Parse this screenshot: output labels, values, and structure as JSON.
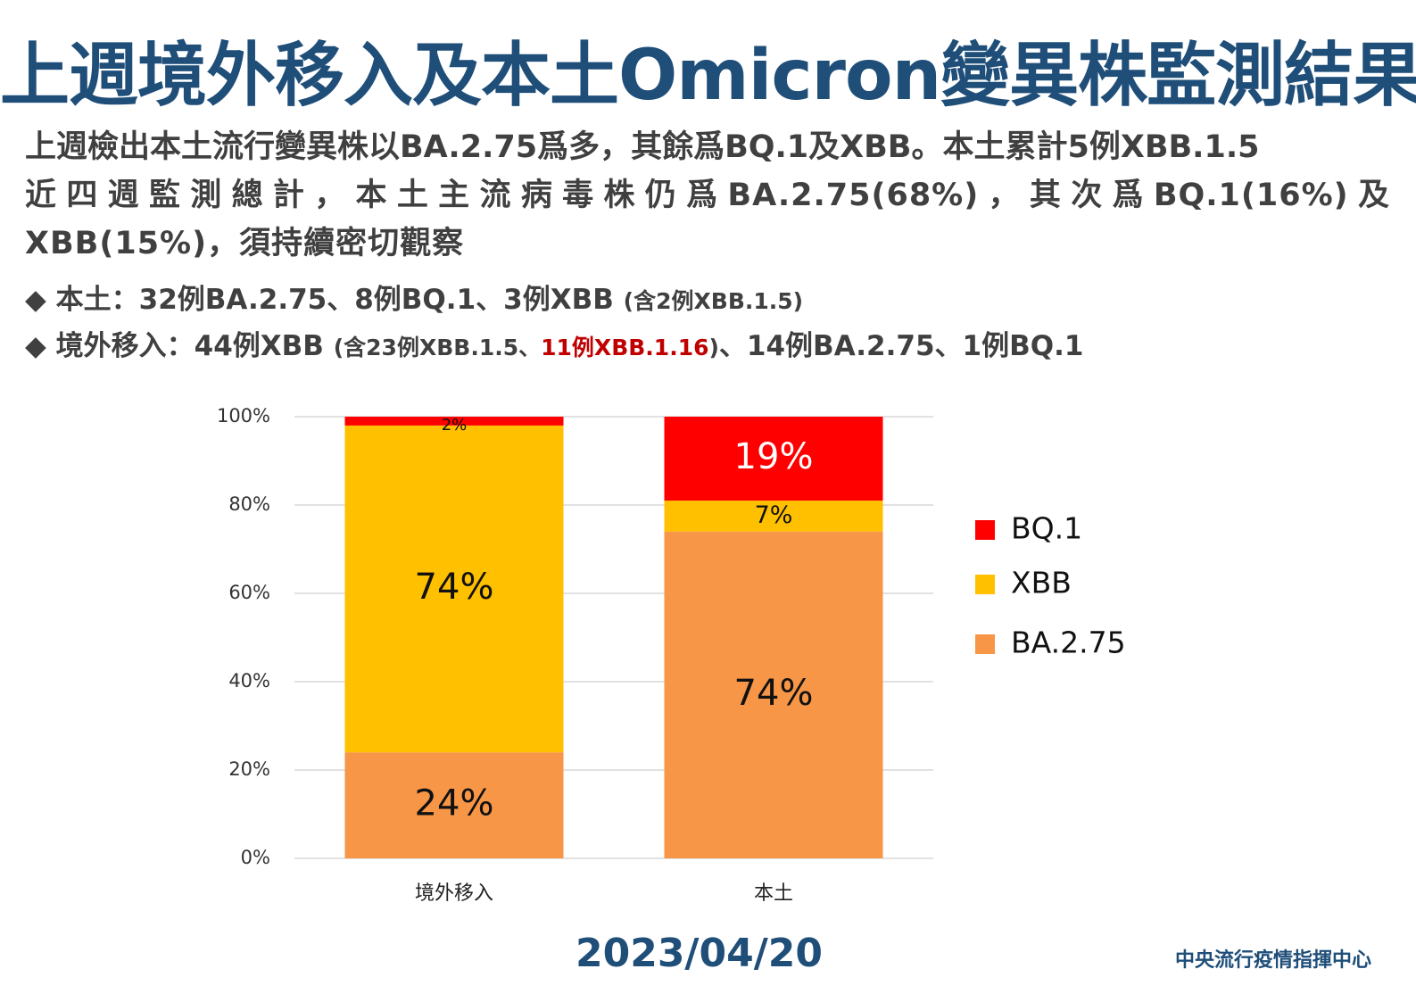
{
  "header": {
    "title": "上週境外移入及本土Omicron變異株監測結果",
    "summary": [
      "上週檢出本土流行變異株以BA.2.75爲多，其餘爲BQ.1及XBB。本土累計5例XBB.1.5",
      "近四週監測總計，本土主流病毒株仍爲BA.2.75(68%)，其次爲BQ.1(16%)及XBB(15%)，須持續密切觀察"
    ],
    "bullets": [
      [
        "本土：32例BA.2.75、8例BQ.1、3例XBB",
        "(含2例XBB.1.5)"
      ],
      [
        "境外移入：44例XBB",
        "(含23例XBB.1.5、",
        "11例XBB.1.16",
        "、14例BA.2.75、1例BQ.1",
        ")"
      ]
    ]
  },
  "chart_data": {
    "type": "stacked_bar",
    "categories": [
      "境外移入",
      "本土"
    ],
    "series": [
      {
        "name": "BA.2.75",
        "color": "#f79646",
        "values": [
          24,
          74
        ],
        "value_labels": [
          "24%",
          "74%"
        ]
      },
      {
        "name": "XBB",
        "color": "#ffc000",
        "values": [
          74,
          7
        ],
        "value_labels": [
          "74%",
          "7%"
        ]
      },
      {
        "name": "BQ.1",
        "color": "#ff0000",
        "values": [
          2,
          19
        ],
        "value_labels": [
          "2%",
          "19%"
        ]
      }
    ],
    "ylim": [
      0,
      100
    ],
    "yticks": [
      {
        "value": 0,
        "label": "0%"
      },
      {
        "value": 20,
        "label": "20%"
      },
      {
        "value": 40,
        "label": "40%"
      },
      {
        "value": 60,
        "label": "60%"
      },
      {
        "value": 80,
        "label": "80%"
      },
      {
        "value": 100,
        "label": "100%"
      }
    ],
    "grid": true,
    "legend": "right"
  },
  "footer": {
    "date": "2023/04/20",
    "source": "中央流行疫情指揮中心"
  }
}
